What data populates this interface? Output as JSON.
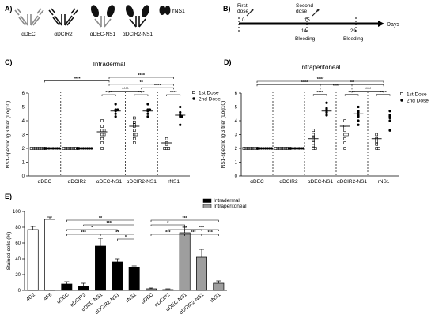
{
  "panels": {
    "A": {
      "letter": "A)",
      "antibodies": [
        "αDEC",
        "αDCIR2",
        "αDEC-NS1",
        "αDCIR2-NS1"
      ],
      "protein": "rNS1"
    },
    "B": {
      "letter": "B)",
      "first_dose": "First\ndose",
      "second_dose": "Second\ndose",
      "ticks": [
        "0",
        "14",
        "15",
        "29"
      ],
      "axis_unit": "Days",
      "bleeding": [
        "Bleeding",
        "Bleeding"
      ]
    },
    "C": {
      "letter": "C)"
    },
    "D": {
      "letter": "D)"
    },
    "E": {
      "letter": "E)"
    }
  },
  "colors": {
    "black": "#000000",
    "gray_bar": "#9e9e9e",
    "dark_gray": "#444444",
    "white": "#ffffff"
  },
  "chart_data": [
    {
      "panel": "C",
      "type": "scatter",
      "title": "Intradermal",
      "ylabel": "NS1-specific IgG titer (Log10)",
      "ylim": [
        0,
        6
      ],
      "yticks": [
        "0",
        "1",
        "2",
        "3",
        "4",
        "5",
        "6"
      ],
      "categories": [
        "αDEC",
        "αDCIR2",
        "αDEC-NS1",
        "αDCIR2-NS1",
        "rNS1"
      ],
      "legend": [
        {
          "label": "1st Dose",
          "marker": "open-square"
        },
        {
          "label": "2nd Dose",
          "marker": "filled-circle"
        }
      ],
      "series": [
        {
          "name": "1st Dose",
          "values": [
            [
              2,
              2,
              2,
              2,
              2,
              2,
              2,
              2
            ],
            [
              2,
              2,
              2,
              2,
              2,
              2,
              2,
              2
            ],
            [
              4,
              3.6,
              3.3,
              3.3,
              3.0,
              3.0,
              2.7,
              2.4,
              2.0
            ],
            [
              4.2,
              3.9,
              3.7,
              3.6,
              3.3,
              3.0,
              3.0,
              2.7,
              2.4
            ],
            [
              2.7,
              2.4,
              2.3,
              2.0,
              2.0,
              2.0
            ]
          ]
        },
        {
          "name": "2nd Dose",
          "values": [
            [
              2,
              2,
              2,
              2,
              2,
              2,
              2,
              2
            ],
            [
              2,
              2,
              2,
              2,
              2,
              2,
              2,
              2
            ],
            [
              5.2,
              4.8,
              4.8,
              4.7,
              4.5,
              4.3
            ],
            [
              5.2,
              4.8,
              4.8,
              4.7,
              4.5,
              4.3
            ],
            [
              5.0,
              4.6,
              4.4,
              4.3,
              4.3,
              3.7
            ]
          ]
        }
      ],
      "medians": {
        "1st Dose": [
          2,
          2,
          3.2,
          3.6,
          2.4
        ],
        "2nd Dose": [
          2,
          2,
          4.7,
          4.7,
          4.4
        ]
      },
      "significance": [
        {
          "from": 2,
          "to": 4,
          "label": "****",
          "level": 0
        },
        {
          "from": 0,
          "to": 2,
          "label": "****",
          "level": 1
        },
        {
          "from": 2,
          "to": 4,
          "label": "**",
          "level": 2
        },
        {
          "from": 3,
          "to": 4,
          "label": "****",
          "level": 3
        },
        {
          "from": 2,
          "to": 3,
          "label": "****",
          "level": 4
        },
        {
          "from": 2,
          "to": 2,
          "label": "****",
          "level": 5
        },
        {
          "from": 3,
          "to": 3,
          "label": "****",
          "level": 5
        },
        {
          "from": 4,
          "to": 4,
          "label": "****",
          "level": 5
        }
      ]
    },
    {
      "panel": "D",
      "type": "scatter",
      "title": "Intraperitoneal",
      "ylabel": "NS1-specific IgG titer (Log10)",
      "ylim": [
        0,
        6
      ],
      "yticks": [
        "0",
        "1",
        "2",
        "3",
        "4",
        "5",
        "6"
      ],
      "categories": [
        "αDEC",
        "αDCIR2",
        "αDEC-NS1",
        "αDCIR2-NS1",
        "rNS1"
      ],
      "legend": [
        {
          "label": "1st Dose",
          "marker": "open-square"
        },
        {
          "label": "2nd Dose",
          "marker": "filled-circle"
        }
      ],
      "series": [
        {
          "name": "1st Dose",
          "values": [
            [
              2,
              2,
              2,
              2,
              2,
              2,
              2,
              2
            ],
            [
              2,
              2,
              2,
              2,
              2,
              2,
              2,
              2
            ],
            [
              3.3,
              3.0,
              2.8,
              2.7,
              2.6,
              2.4,
              2.2,
              2.0,
              2.0
            ],
            [
              4.0,
              3.6,
              3.5,
              3.3,
              3.0,
              3.0,
              2.7,
              2.4,
              2.0
            ],
            [
              3.0,
              2.7,
              2.5,
              2.3,
              2.0,
              2.0
            ]
          ]
        },
        {
          "name": "2nd Dose",
          "values": [
            [
              2,
              2,
              2,
              2,
              2,
              2,
              2,
              2
            ],
            [
              2,
              2,
              2,
              2,
              2,
              2,
              2,
              2
            ],
            [
              5.3,
              4.9,
              4.8,
              4.7,
              4.6,
              4.4
            ],
            [
              5.0,
              4.7,
              4.6,
              4.4,
              4.3,
              4.0,
              3.7
            ],
            [
              4.7,
              4.4,
              4.3,
              4.2,
              4.0,
              3.3
            ]
          ]
        }
      ],
      "medians": {
        "1st Dose": [
          2,
          2,
          2.7,
          3.6,
          2.7
        ],
        "2nd Dose": [
          2,
          2,
          4.7,
          4.5,
          4.2
        ]
      },
      "significance": [
        {
          "from": 0,
          "to": 4,
          "label": "****",
          "level": 0
        },
        {
          "from": 0,
          "to": 3,
          "label": "****",
          "level": 1
        },
        {
          "from": 2,
          "to": 4,
          "label": "**",
          "level": 1
        },
        {
          "from": 2,
          "to": 3,
          "label": "****",
          "level": 2
        },
        {
          "from": 3,
          "to": 4,
          "label": "****",
          "level": 3
        },
        {
          "from": 2,
          "to": 2,
          "label": "****",
          "level": 4
        },
        {
          "from": 3,
          "to": 3,
          "label": "****",
          "level": 4
        },
        {
          "from": 4,
          "to": 4,
          "label": "****",
          "level": 4
        }
      ]
    },
    {
      "panel": "E",
      "type": "bar",
      "ylabel": "Stained cells (%)",
      "ylim": [
        0,
        100
      ],
      "yticks": [
        "0",
        "20",
        "40",
        "60",
        "80",
        "100"
      ],
      "categories": [
        "4G2",
        "4F6",
        "αDEC",
        "αDCIR2",
        "αDEC-NS1",
        "αDCIR2-NS1",
        "rNS1",
        "αDEC",
        "αDCIR2",
        "αDEC-NS1",
        "αDCIR2-NS1",
        "rNS1"
      ],
      "groups": [
        "control",
        "control",
        "Intradermal",
        "Intradermal",
        "Intradermal",
        "Intradermal",
        "Intradermal",
        "Intraperitoneal",
        "Intraperitoneal",
        "Intraperitoneal",
        "Intraperitoneal",
        "Intraperitoneal"
      ],
      "values": [
        77,
        90,
        8,
        5,
        56,
        36,
        29,
        2,
        1,
        73,
        42,
        9
      ],
      "errors": [
        4,
        3,
        3,
        4,
        10,
        4,
        2,
        1,
        1,
        7,
        10,
        3
      ],
      "legend": [
        {
          "label": "Intradermal",
          "color": "#000000"
        },
        {
          "label": "Intraperitoneal",
          "color": "#9e9e9e"
        }
      ],
      "significance": [
        {
          "from": 2,
          "to": 6,
          "label": "**",
          "level": 0
        },
        {
          "from": 3,
          "to": 6,
          "label": "***",
          "level": 1
        },
        {
          "from": 2,
          "to": 5,
          "label": "*",
          "level": 2
        },
        {
          "from": 2,
          "to": 4,
          "label": "***",
          "level": 3
        },
        {
          "from": 4,
          "to": 6,
          "label": "**",
          "level": 3
        },
        {
          "from": 5,
          "to": 6,
          "label": "*",
          "level": 4
        },
        {
          "from": 7,
          "to": 11,
          "label": "***",
          "level": 0
        },
        {
          "from": 7,
          "to": 9,
          "label": "*",
          "level": 1
        },
        {
          "from": 8,
          "to": 10,
          "label": "***",
          "level": 2
        },
        {
          "from": 9,
          "to": 11,
          "label": "***",
          "level": 2
        },
        {
          "from": 7,
          "to": 9,
          "label": "***",
          "level": 3
        },
        {
          "from": 9,
          "to": 10,
          "label": "***",
          "level": 3
        },
        {
          "from": 10,
          "to": 11,
          "label": "***",
          "level": 3
        }
      ]
    }
  ]
}
